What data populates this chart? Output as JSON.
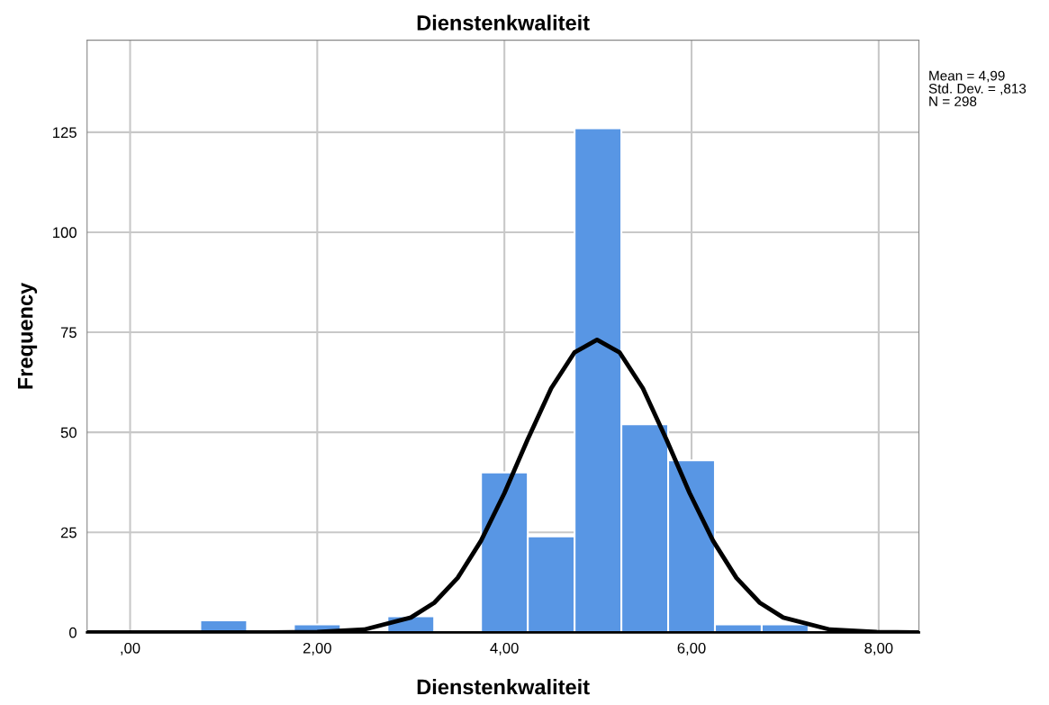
{
  "chart_data": {
    "type": "histogram",
    "title": "Dienstenkwaliteit",
    "xlabel": "Dienstenkwaliteit",
    "ylabel": "Frequency",
    "bins": [
      0.75,
      1.25,
      1.75,
      2.25,
      2.75,
      3.25,
      3.75,
      4.25,
      4.75,
      5.25,
      5.75,
      6.25,
      6.75,
      7.25
    ],
    "values": [
      3,
      0,
      2,
      0,
      4,
      0,
      40,
      24,
      126,
      52,
      43,
      2,
      2
    ],
    "color": "#5896e4",
    "series": [
      {
        "type": "line",
        "color": "#000000",
        "x": [
          -0.46,
          1.5,
          2.0,
          2.5,
          3.0,
          3.25,
          3.5,
          3.75,
          4.0,
          4.25,
          4.5,
          4.75,
          4.99,
          5.23,
          5.48,
          5.73,
          5.98,
          6.23,
          6.48,
          6.73,
          6.98,
          7.48,
          7.98,
          8.43
        ],
        "values": [
          0,
          0,
          0.1,
          0.7,
          3.7,
          7.4,
          13.6,
          22.9,
          34.8,
          48.3,
          61.0,
          70.0,
          73.1,
          70.0,
          61.0,
          48.3,
          34.8,
          22.9,
          13.6,
          7.4,
          3.7,
          0.7,
          0.1,
          0
        ]
      }
    ],
    "xlim": [
      -0.46,
      8.43
    ],
    "ylim": [
      0,
      148
    ],
    "xticks": [
      {
        "value": 0,
        "label": ",00"
      },
      {
        "value": 2,
        "label": "2,00"
      },
      {
        "value": 4,
        "label": "4,00"
      },
      {
        "value": 6,
        "label": "6,00"
      },
      {
        "value": 8,
        "label": "8,00"
      }
    ],
    "yticks": [
      0,
      25,
      50,
      75,
      100,
      125
    ],
    "grid": true,
    "legend": false,
    "marker": "none",
    "line_style": "solid",
    "annotations": [
      "Mean = 4,99",
      "Std. Dev. = ,813",
      "N = 298"
    ]
  }
}
